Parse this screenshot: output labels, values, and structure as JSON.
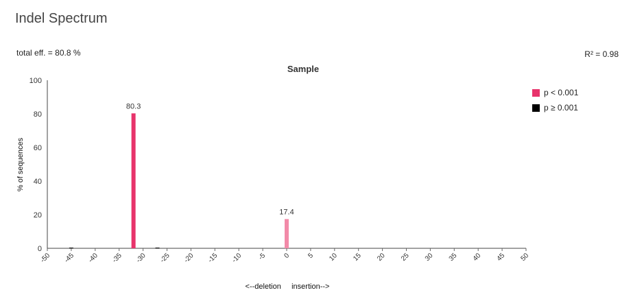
{
  "header": {
    "title": "Indel Spectrum",
    "total_eff": "total eff. = 80.8 %",
    "r_squared": "R² = 0.98"
  },
  "legend": {
    "items": [
      {
        "label": "p < 0.001",
        "color": "#e8336b"
      },
      {
        "label": "p ≥ 0.001",
        "color": "#000000"
      }
    ]
  },
  "chart_data": {
    "type": "bar",
    "title": "Sample",
    "xlabel": "<--deletion     insertion-->",
    "ylabel": "% of sequences",
    "xlim": [
      -50,
      50
    ],
    "ylim": [
      0,
      100
    ],
    "x_ticks": [
      -50,
      -45,
      -40,
      -35,
      -30,
      -25,
      -20,
      -15,
      -10,
      -5,
      0,
      5,
      10,
      15,
      20,
      25,
      30,
      35,
      40,
      45,
      50
    ],
    "y_ticks": [
      0,
      20,
      40,
      60,
      80,
      100
    ],
    "bars": [
      {
        "x": -32,
        "value": 80.3,
        "label": "80.3",
        "color": "#e8336b"
      },
      {
        "x": 0,
        "value": 17.4,
        "label": "17.4",
        "color": "#f28aa8"
      },
      {
        "x": -45,
        "value": 0.3,
        "label": "",
        "color": "#000000"
      },
      {
        "x": -27,
        "value": 0.3,
        "label": "",
        "color": "#000000"
      }
    ]
  }
}
